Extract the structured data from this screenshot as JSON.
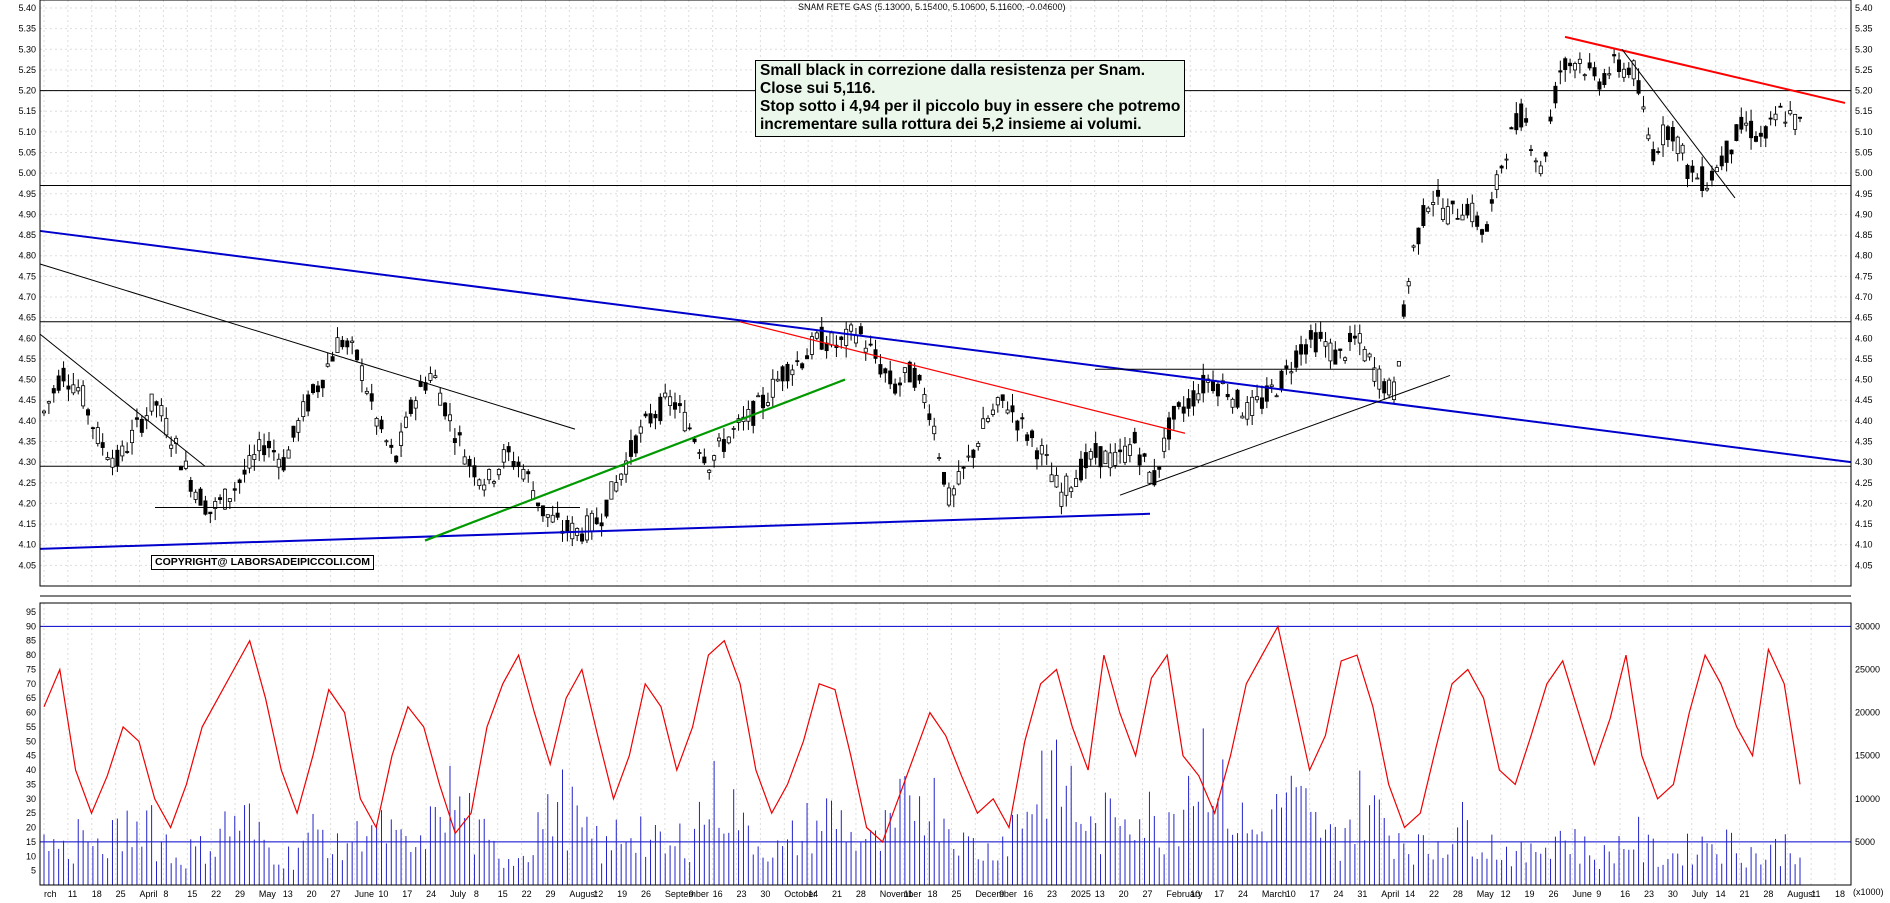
{
  "chart_data": [
    {
      "type": "candlestick",
      "title": "SNAM RETE GAS (5.13000, 5.15400, 5.10600, 5.11600, -0.04600)",
      "ylim": [
        4.0,
        5.4
      ],
      "y_ticks": [
        "5.40",
        "5.35",
        "5.30",
        "5.25",
        "5.20",
        "5.15",
        "5.10",
        "5.05",
        "5.00",
        "4.95",
        "4.90",
        "4.85",
        "4.80",
        "4.75",
        "4.70",
        "4.65",
        "4.60",
        "4.55",
        "4.50",
        "4.45",
        "4.40",
        "4.35",
        "4.30",
        "4.25",
        "4.20",
        "4.15",
        "4.10",
        "4.05"
      ],
      "grid": true,
      "horizontal_levels": [
        5.2,
        4.97,
        4.64,
        4.29
      ],
      "price_path": [
        4.42,
        4.52,
        4.47,
        4.35,
        4.3,
        4.38,
        4.45,
        4.35,
        4.25,
        4.18,
        4.22,
        4.28,
        4.35,
        4.3,
        4.42,
        4.5,
        4.6,
        4.55,
        4.4,
        4.3,
        4.45,
        4.52,
        4.4,
        4.3,
        4.25,
        4.32,
        4.28,
        4.18,
        4.14,
        4.13,
        4.16,
        4.25,
        4.35,
        4.42,
        4.45,
        4.38,
        4.3,
        4.36,
        4.4,
        4.45,
        4.52,
        4.55,
        4.6,
        4.58,
        4.62,
        4.55,
        4.48,
        4.52,
        4.42,
        4.2,
        4.3,
        4.4,
        4.45,
        4.38,
        4.32,
        4.22,
        4.28,
        4.32,
        4.3,
        4.35,
        4.25,
        4.4,
        4.45,
        4.5,
        4.48,
        4.42,
        4.45,
        4.5,
        4.58,
        4.6,
        4.55,
        4.6,
        4.52,
        4.46,
        4.8,
        4.95,
        4.9,
        4.92,
        4.85,
        5.05,
        5.15,
        5.0,
        5.25,
        5.28,
        5.22,
        5.26,
        5.25,
        5.05,
        5.12,
        5.0,
        4.98,
        5.05,
        5.12,
        5.08,
        5.15,
        5.116
      ],
      "note_lines": [
        "Small black in correzione dalla resistenza per Snam.",
        "Close sui 5,116.",
        "Stop sotto i 4,94 per il piccolo buy in essere che potremo",
        "incrementare sulla rottura dei 5,2 insieme ai volumi."
      ],
      "copyright": "COPYRIGHT@ LABORSADEIPICCOLI.COM"
    },
    {
      "type": "line+bar",
      "series": [
        {
          "values": [
            62,
            75,
            40,
            25,
            38,
            55,
            50,
            30,
            20,
            35,
            55,
            65,
            75,
            85,
            65,
            40,
            25,
            45,
            68,
            60,
            30,
            20,
            45,
            62,
            55,
            35,
            18,
            25,
            55,
            70,
            80,
            60,
            42,
            65,
            75,
            52,
            30,
            45,
            70,
            62,
            40,
            55,
            80,
            85,
            70,
            40,
            25,
            35,
            50,
            70,
            68,
            45,
            20,
            15,
            30,
            45,
            60,
            52,
            38,
            25,
            30,
            20,
            50,
            70,
            75,
            55,
            40,
            80,
            60,
            45,
            72,
            80,
            45,
            38,
            25,
            45,
            70,
            80,
            90,
            65,
            40,
            52,
            78,
            80,
            62,
            35,
            20,
            25,
            48,
            70,
            75,
            65,
            40,
            35,
            52,
            70,
            78,
            60,
            42,
            58,
            80,
            45,
            30,
            35,
            60,
            80,
            70,
            55,
            45,
            82,
            70,
            35
          ]
        },
        {
          "values": [
            14,
            12,
            18,
            11,
            16,
            20,
            25,
            15,
            10,
            12,
            14,
            20,
            22,
            16,
            12,
            10,
            15,
            18,
            12,
            16,
            22,
            18,
            14,
            12,
            20,
            30,
            25,
            16,
            12,
            10,
            14,
            22,
            28,
            24,
            16,
            12,
            18,
            20,
            14,
            12,
            16,
            24,
            30,
            26,
            18,
            14,
            12,
            16,
            20,
            24,
            22,
            16,
            14,
            18,
            26,
            32,
            28,
            20,
            14,
            12,
            16,
            22,
            30,
            40,
            34,
            24,
            18,
            22,
            28,
            24,
            20,
            26,
            38,
            45,
            30,
            22,
            18,
            24,
            30,
            26,
            20,
            16,
            22,
            28,
            24,
            18,
            14,
            12,
            16,
            20,
            18,
            14,
            12,
            10,
            14,
            18,
            16,
            12,
            10,
            14,
            16,
            12,
            10,
            12,
            14,
            16,
            14,
            12,
            10,
            12,
            14,
            12
          ]
        }
      ],
      "ylim": [
        0,
        95
      ],
      "y_ticks_left": [
        "95",
        "90",
        "85",
        "80",
        "75",
        "70",
        "65",
        "60",
        "55",
        "50",
        "45",
        "40",
        "35",
        "30",
        "25",
        "20",
        "15",
        "10",
        "5"
      ],
      "y_ticks_right": [
        "30000",
        "25000",
        "20000",
        "15000",
        "10000",
        "5000"
      ],
      "right_unit": "(x1000)",
      "horizontal_levels": [
        90,
        15
      ]
    }
  ],
  "x_ticks": [
    "rch",
    "11",
    "18",
    "25",
    "April",
    "8",
    "15",
    "22",
    "29",
    "May",
    "13",
    "20",
    "27",
    "June",
    "10",
    "17",
    "24",
    "July",
    "8",
    "15",
    "22",
    "29",
    "August",
    "12",
    "19",
    "26",
    "September",
    "9",
    "16",
    "23",
    "30",
    "October",
    "14",
    "21",
    "28",
    "November",
    "11",
    "18",
    "25",
    "December",
    "9",
    "16",
    "23",
    "2025",
    "13",
    "20",
    "27",
    "February",
    "10",
    "17",
    "24",
    "March",
    "10",
    "17",
    "24",
    "31",
    "April",
    "14",
    "22",
    "28",
    "May",
    "12",
    "19",
    "26",
    "June",
    "9",
    "16",
    "23",
    "30",
    "July",
    "14",
    "21",
    "28",
    "August",
    "11",
    "18"
  ],
  "colors": {
    "candle": "#000000",
    "trend_blue": "#0000cc",
    "trend_red": "#ff0000",
    "trend_green": "#009900",
    "trend_black": "#000000",
    "oscillator": "#ee0000",
    "volume": "#2222cc",
    "level_line": "#0000cc",
    "note_bg": "#eaf7ea"
  }
}
